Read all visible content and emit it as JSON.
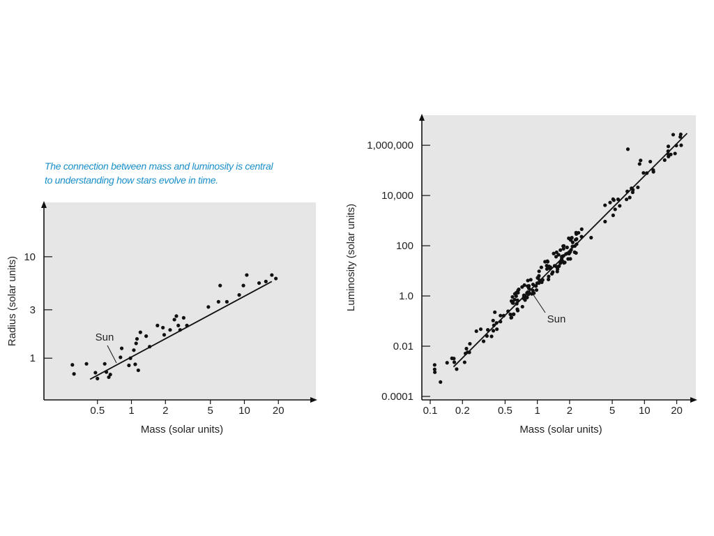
{
  "caption": {
    "line1": "The connection between mass and luminosity is central",
    "line2": "to understanding how stars evolve in time."
  },
  "colors": {
    "panel": "#e6e6e6",
    "ink": "#111111",
    "caption": "#1a8fc9"
  },
  "chart_data": [
    {
      "id": "radius",
      "type": "scatter",
      "scale": "log-log",
      "title": "",
      "xlabel": "Mass (solar units)",
      "ylabel": "Radius (solar units)",
      "xlim": [
        0.22,
        40
      ],
      "ylim": [
        0.42,
        25
      ],
      "xticks": [
        {
          "v": 0.5,
          "label": "0.5"
        },
        {
          "v": 1,
          "label": "1"
        },
        {
          "v": 2,
          "label": "2"
        },
        {
          "v": 5,
          "label": "5"
        },
        {
          "v": 10,
          "label": "10"
        },
        {
          "v": 20,
          "label": "20"
        }
      ],
      "yticks": [
        {
          "v": 1,
          "label": "1"
        },
        {
          "v": 3,
          "label": "3"
        },
        {
          "v": 10,
          "label": "10"
        }
      ],
      "trend": [
        [
          0.43,
          0.62
        ],
        [
          17.5,
          5.7
        ]
      ],
      "annotation": {
        "text": "Sun",
        "x": 1,
        "y": 1
      }
    },
    {
      "id": "luminosity",
      "type": "scatter",
      "scale": "log-log",
      "title": "",
      "xlabel": "Mass (solar units)",
      "ylabel": "Luminosity (solar units)",
      "xlim": [
        0.1,
        28
      ],
      "ylim": [
        0.0001,
        5000000
      ],
      "xticks": [
        {
          "v": 0.1,
          "label": "0.1"
        },
        {
          "v": 0.2,
          "label": "0.2"
        },
        {
          "v": 0.5,
          "label": "0.5"
        },
        {
          "v": 1,
          "label": "1"
        },
        {
          "v": 2,
          "label": "2"
        },
        {
          "v": 5,
          "label": "5"
        },
        {
          "v": 10,
          "label": "10"
        },
        {
          "v": 20,
          "label": "20"
        }
      ],
      "yticks": [
        {
          "v": 0.0001,
          "label": "0.0001"
        },
        {
          "v": 0.01,
          "label": "0.01"
        },
        {
          "v": 1,
          "label": "1.0"
        },
        {
          "v": 100,
          "label": "100"
        },
        {
          "v": 10000,
          "label": "10,000"
        },
        {
          "v": 1000000,
          "label": "1,000,000"
        }
      ],
      "trend": [
        [
          0.165,
          0.0015
        ],
        [
          25,
          3000000
        ]
      ],
      "annotation": {
        "text": "Sun",
        "x": 1,
        "y": 1
      }
    }
  ]
}
